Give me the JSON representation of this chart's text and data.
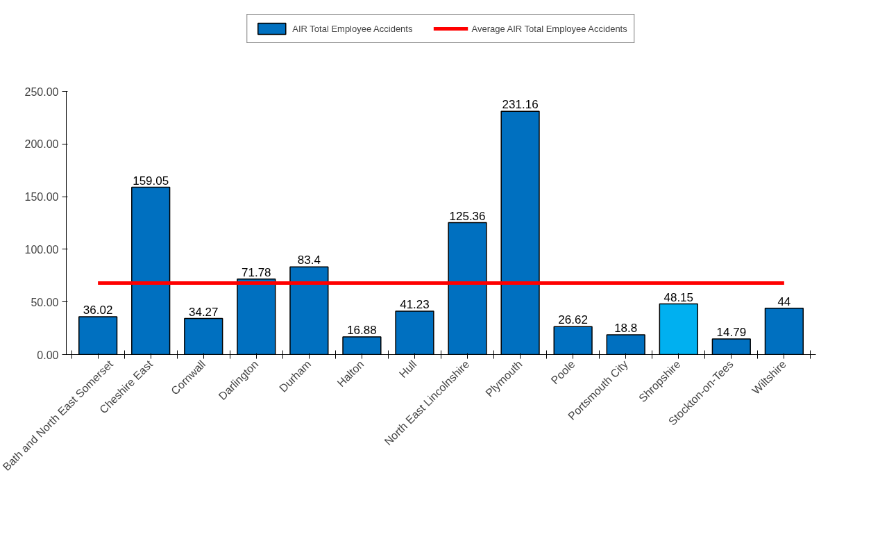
{
  "chart_data": {
    "type": "bar",
    "categories": [
      "Bath and North East Somerset",
      "Cheshire East",
      "Cornwall",
      "Darlington",
      "Durham",
      "Halton",
      "Hull",
      "North East Lincolnshire",
      "Plymouth",
      "Poole",
      "Portsmouth City",
      "Shropshire",
      "Stockton-on-Tees",
      "Wiltshire"
    ],
    "series": [
      {
        "name": "AIR Total Employee Accidents",
        "values": [
          36.02,
          159.05,
          34.27,
          71.78,
          83.4,
          16.88,
          41.23,
          125.36,
          231.16,
          26.62,
          18.8,
          48.15,
          14.79,
          44
        ],
        "colors": [
          "#0070c0",
          "#0070c0",
          "#0070c0",
          "#0070c0",
          "#0070c0",
          "#0070c0",
          "#0070c0",
          "#0070c0",
          "#0070c0",
          "#0070c0",
          "#0070c0",
          "#00b0f0",
          "#0070c0",
          "#0070c0"
        ],
        "data_labels": true
      },
      {
        "name": "Average AIR Total Employee Accidents",
        "type": "line",
        "color": "#ff0000",
        "values": [
          67.97,
          67.97,
          67.97,
          67.97,
          67.97,
          67.97,
          67.97,
          67.97,
          67.97,
          67.97,
          67.97,
          67.97,
          67.97,
          67.97
        ]
      }
    ],
    "ylim": [
      0,
      250
    ],
    "yticks": [
      {
        "value": 0,
        "label": "0.00"
      },
      {
        "value": 50,
        "label": "50.00"
      },
      {
        "value": 100,
        "label": "100.00"
      },
      {
        "value": 150,
        "label": "150.00"
      },
      {
        "value": 200,
        "label": "200.00"
      },
      {
        "value": 250,
        "label": "250.00"
      }
    ],
    "grid": false,
    "legend": "top",
    "line_style": "solid"
  }
}
